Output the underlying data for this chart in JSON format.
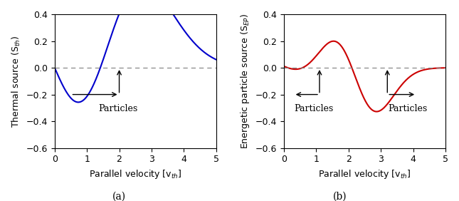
{
  "xlim": [
    0,
    5
  ],
  "ylim_left": [
    -0.6,
    0.4
  ],
  "ylim_right": [
    -0.6,
    0.4
  ],
  "yticks_left": [
    -0.6,
    -0.4,
    -0.2,
    0,
    0.2,
    0.4
  ],
  "yticks_right": [
    -0.6,
    -0.4,
    -0.2,
    0,
    0.2,
    0.4
  ],
  "xticks": [
    0,
    1,
    2,
    3,
    4,
    5
  ],
  "xlabel": "Parallel velocity [v$_{th}$]",
  "ylabel_left": "Thermal source (S$_{th}$)",
  "ylabel_right": "Energetic particle source (S$_{EP}$)",
  "caption_left": "(a)",
  "caption_right": "(b)",
  "line_color_left": "#0000CC",
  "line_color_right": "#CC0000",
  "dashed_color": "#888888",
  "bg_color": "#ffffff",
  "annotation_text": "Particles",
  "figsize": [
    6.45,
    2.82
  ],
  "dpi": 100,
  "tick_fontsize": 9,
  "label_fontsize": 9,
  "caption_fontsize": 10,
  "annot_fontsize": 9
}
